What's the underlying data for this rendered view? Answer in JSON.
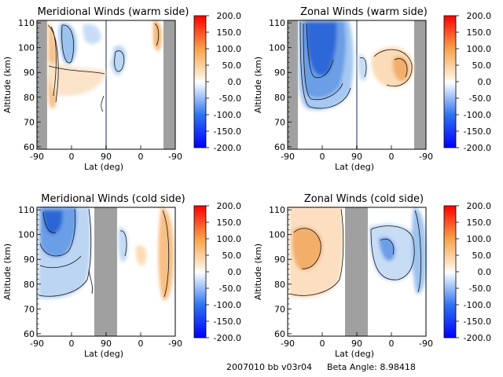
{
  "footer": {
    "run": "2007010 bb v03r04",
    "beta": "Beta Angle: 8.98418"
  },
  "colorbar_ticks": [
    "200.0",
    "150.0",
    "100.0",
    "50.0",
    "0.0",
    "-50.0",
    "-100.0",
    "-150.0",
    "-200.0"
  ],
  "chart_data": [
    {
      "type": "heatmap",
      "title": "Meridional Winds (warm side)",
      "xlabel": "Lat (deg)",
      "ylabel": "Altitude (km)",
      "x_tick_labels": [
        "-90",
        "0",
        "90",
        "0",
        "-90"
      ],
      "y_ticks": [
        60,
        70,
        80,
        90,
        100,
        110
      ],
      "ylim": [
        59,
        111
      ],
      "clim": [
        -200,
        200
      ],
      "colors": {
        "negative": "#2f6cdc",
        "positive": "#f08a1c"
      },
      "masked": [
        "-90 to -77",
        "-12 to -90 (right)"
      ],
      "features": [
        {
          "sign": "positive",
          "value": 60,
          "lat": "-75 to -55",
          "alt": "75-110"
        },
        {
          "sign": "negative",
          "value": -50,
          "lat": "-55 to -30",
          "alt": "88-110"
        },
        {
          "sign": "positive",
          "value": 30,
          "lat": "-40 to 70",
          "alt": "78-95"
        },
        {
          "sign": "negative",
          "value": -40,
          "lat": "70 to 90",
          "alt": "95-110"
        },
        {
          "sign": "positive",
          "value": 70,
          "lat": "-20 to -12",
          "alt": "95-110"
        }
      ]
    },
    {
      "type": "heatmap",
      "title": "Zonal Winds (warm side)",
      "xlabel": "Lat (deg)",
      "ylabel": "Altitude (km)",
      "x_tick_labels": [
        "-90",
        "0",
        "90",
        "0",
        "-90"
      ],
      "y_ticks": [
        60,
        70,
        80,
        90,
        100,
        110
      ],
      "ylim": [
        59,
        111
      ],
      "clim": [
        -200,
        200
      ],
      "colors": {
        "negative": "#1f5ad8",
        "positive": "#f08a1c"
      },
      "masked": [
        "-90 to -77",
        "-12 to -90 (right)"
      ],
      "features": [
        {
          "sign": "negative",
          "value": -180,
          "lat": "-65 to 30",
          "alt": "75-110"
        },
        {
          "sign": "negative",
          "value": -60,
          "lat": "60 to 80",
          "alt": "80-100"
        },
        {
          "sign": "positive",
          "value": 90,
          "lat": "60 to -12",
          "alt": "82-100"
        }
      ]
    },
    {
      "type": "heatmap",
      "title": "Meridional Winds (cold side)",
      "xlabel": "Lat (deg)",
      "ylabel": "Altitude (km)",
      "x_tick_labels": [
        "-90",
        "0",
        "90",
        "0",
        "-90"
      ],
      "y_ticks": [
        60,
        70,
        80,
        90,
        100,
        110
      ],
      "ylim": [
        59,
        111
      ],
      "clim": [
        -200,
        200
      ],
      "colors": {
        "negative": "#2a6ad8",
        "positive": "#f2a043"
      },
      "masked": [
        "62 to 120"
      ],
      "features": [
        {
          "sign": "negative",
          "value": -110,
          "lat": "-90 to 40",
          "alt": "75-111"
        },
        {
          "sign": "negative",
          "value": -40,
          "lat": "115 to 140",
          "alt": "85-105"
        },
        {
          "sign": "positive",
          "value": 50,
          "lat": "150 to 175",
          "alt": "85-95"
        },
        {
          "sign": "positive",
          "value": 70,
          "lat": "205 to 225",
          "alt": "77-111"
        }
      ]
    },
    {
      "type": "heatmap",
      "title": "Zonal Winds (cold side)",
      "xlabel": "Lat (deg)",
      "ylabel": "Altitude (km)",
      "x_tick_labels": [
        "-90",
        "0",
        "90",
        "0",
        "-90"
      ],
      "y_ticks": [
        60,
        70,
        80,
        90,
        100,
        110
      ],
      "ylim": [
        59,
        111
      ],
      "clim": [
        -200,
        200
      ],
      "colors": {
        "negative": "#2e6bd8",
        "positive": "#f08a1c"
      },
      "masked": [
        "62 to 120"
      ],
      "features": [
        {
          "sign": "positive",
          "value": 80,
          "lat": "-80 to 40",
          "alt": "75-110"
        },
        {
          "sign": "negative",
          "value": -50,
          "lat": "130 to 200",
          "alt": "80-104"
        },
        {
          "sign": "negative",
          "value": -90,
          "lat": "205 to 225",
          "alt": "75-110"
        }
      ]
    }
  ]
}
